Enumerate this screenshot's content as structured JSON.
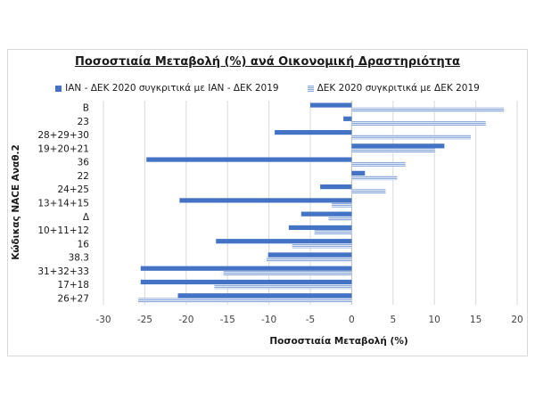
{
  "chart_data": {
    "type": "bar",
    "orientation": "horizontal",
    "title": "Ποσοστιαία Μεταβολή (%) ανά Οικονομική Δραστηριότητα",
    "xlabel": "Ποσοστιαία Μεταβολή (%)",
    "ylabel": "Κώδικας NACE Αναθ.2",
    "xlim": [
      -30,
      20
    ],
    "xticks": [
      -30,
      -25,
      -20,
      -15,
      -10,
      -5,
      0,
      5,
      10,
      15,
      20
    ],
    "grid": true,
    "legend_position": "top",
    "categories": [
      "B",
      "23",
      "28+29+30",
      "19+20+21",
      "36",
      "22",
      "24+25",
      "13+14+15",
      "Δ",
      "10+11+12",
      "16",
      "38.3",
      "31+32+33",
      "17+18",
      "26+27"
    ],
    "series": [
      {
        "name": "ΙΑΝ - ΔΕΚ 2020 συγκριτικά με  ΙΑΝ - ΔΕΚ 2019",
        "color": "#4472c4",
        "pattern": "solid",
        "values": [
          -5.0,
          -1.0,
          -9.3,
          11.2,
          -24.8,
          1.6,
          -3.8,
          -20.8,
          -6.1,
          -7.6,
          -16.4,
          -10.1,
          -25.5,
          -25.5,
          -21.0
        ]
      },
      {
        "name": "ΔΕΚ 2020 συγκριτικά με ΔΕΚ 2019",
        "color": "#8eaadb",
        "pattern": "hatched",
        "values": [
          18.4,
          16.2,
          14.4,
          10.1,
          6.5,
          5.5,
          4.1,
          -2.4,
          -2.8,
          -4.5,
          -7.2,
          -10.3,
          -15.5,
          -16.6,
          -25.8
        ]
      }
    ]
  }
}
